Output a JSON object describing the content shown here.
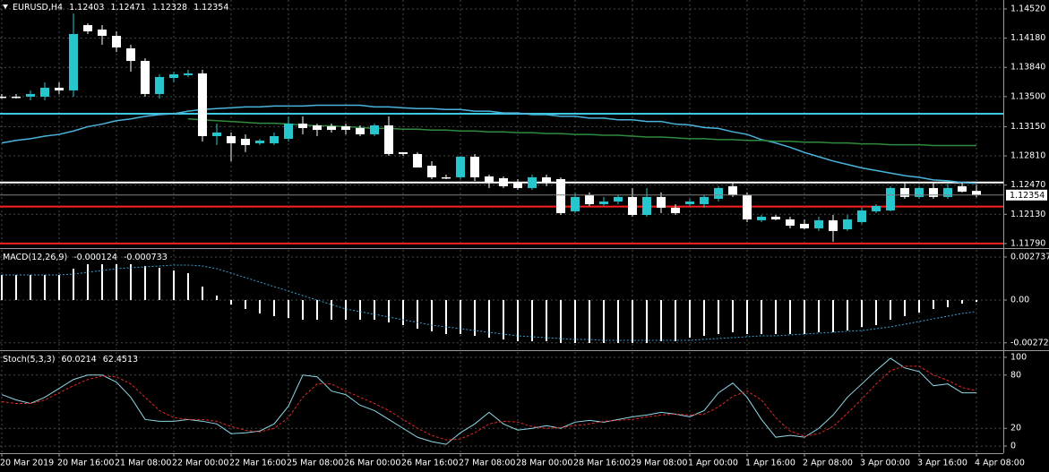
{
  "chart_data": [
    {
      "type": "candlestick",
      "title": "EURUSD,H4",
      "categories": [
        "20 Mar 2019",
        null,
        null,
        null,
        "20 Mar 16:00",
        null,
        null,
        null,
        "21 Mar 08:00",
        null,
        null,
        null,
        "22 Mar 00:00",
        null,
        null,
        null,
        "22 Mar 16:00",
        null,
        null,
        null,
        "25 Mar 08:00",
        null,
        null,
        null,
        "26 Mar 00:00",
        null,
        null,
        null,
        "26 Mar 16:00",
        null,
        null,
        null,
        "27 Mar 08:00",
        null,
        null,
        null,
        "28 Mar 00:00",
        null,
        null,
        null,
        "28 Mar 16:00",
        null,
        null,
        null,
        "29 Mar 08:00",
        null,
        null,
        null,
        "1 Apr 00:00",
        null,
        null,
        null,
        "1 Apr 16:00",
        null,
        null,
        null,
        "2 Apr 08:00",
        null,
        null,
        null,
        "3 Apr 00:00",
        null,
        null,
        null,
        "3 Apr 16:00",
        null,
        null,
        null,
        "4 Apr 08:00"
      ],
      "open": [
        1.13499,
        1.13499,
        1.13499,
        1.13499,
        1.13603,
        1.13572,
        1.14332,
        1.1428,
        1.14207,
        1.14061,
        1.13915,
        1.1353,
        1.13717,
        1.13749,
        1.1377,
        1.1304,
        1.1304,
        1.13009,
        1.12957,
        1.12957,
        1.13009,
        1.13186,
        1.13165,
        1.13155,
        1.13155,
        1.13134,
        1.13061,
        1.13165,
        1.12853,
        1.12832,
        1.12696,
        1.12561,
        1.12561,
        1.128,
        1.12571,
        1.1255,
        1.12498,
        1.12436,
        1.12561,
        1.1254,
        1.12165,
        1.12352,
        1.12248,
        1.12279,
        1.12332,
        1.12123,
        1.12332,
        1.12207,
        1.12248,
        1.12248,
        1.12311,
        1.12457,
        1.12352,
        1.12061,
        1.12102,
        1.12071,
        1.12019,
        1.11967,
        1.12061,
        1.11956,
        1.1204,
        1.12165,
        1.12175,
        1.12436,
        1.12332,
        1.12436,
        1.12332,
        1.12457,
        1.12403
      ],
      "high": [
        1.1353,
        1.1353,
        1.13572,
        1.13665,
        1.13665,
        1.14468,
        1.14353,
        1.14332,
        1.14259,
        1.14103,
        1.13947,
        1.13759,
        1.1379,
        1.13811,
        1.13811,
        1.13186,
        1.13082,
        1.13061,
        1.13009,
        1.13082,
        1.13269,
        1.13269,
        1.13186,
        1.13186,
        1.13186,
        1.13165,
        1.13186,
        1.13269,
        1.12853,
        1.12853,
        1.12748,
        1.12592,
        1.12811,
        1.12832,
        1.12592,
        1.12571,
        1.1254,
        1.12592,
        1.12592,
        1.12561,
        1.12384,
        1.12384,
        1.12332,
        1.12352,
        1.12436,
        1.12436,
        1.12384,
        1.12248,
        1.12311,
        1.12352,
        1.12457,
        1.12498,
        1.12384,
        1.12123,
        1.12123,
        1.12102,
        1.12071,
        1.12102,
        1.12123,
        1.12123,
        1.12207,
        1.12248,
        1.12457,
        1.12498,
        1.12457,
        1.12498,
        1.12498,
        1.12498,
        1.12471
      ],
      "low": [
        1.13478,
        1.13478,
        1.13457,
        1.13457,
        1.1353,
        1.13499,
        1.14228,
        1.14103,
        1.1402,
        1.1379,
        1.13499,
        1.13478,
        1.13665,
        1.13728,
        1.12978,
        1.12936,
        1.12748,
        1.12853,
        1.12936,
        1.12936,
        1.12978,
        1.13061,
        1.1304,
        1.13082,
        1.13061,
        1.1304,
        1.1304,
        1.12811,
        1.12811,
        1.12675,
        1.1254,
        1.1254,
        1.1254,
        1.12519,
        1.12436,
        1.12436,
        1.12415,
        1.12415,
        1.12457,
        1.12123,
        1.12144,
        1.12227,
        1.12227,
        1.12248,
        1.12102,
        1.12102,
        1.12144,
        1.12123,
        1.12227,
        1.12207,
        1.12279,
        1.12332,
        1.1204,
        1.1204,
        1.12061,
        1.11967,
        1.11956,
        1.11936,
        1.11811,
        1.11936,
        1.12019,
        1.12144,
        1.12165,
        1.12311,
        1.12311,
        1.12311,
        1.12311,
        1.12384,
        1.12328
      ],
      "close": [
        1.13499,
        1.13499,
        1.1353,
        1.13603,
        1.13572,
        1.14228,
        1.14259,
        1.14207,
        1.14072,
        1.13915,
        1.1353,
        1.13728,
        1.13759,
        1.1377,
        1.1304,
        1.13082,
        1.12957,
        1.12936,
        1.12988,
        1.1304,
        1.13186,
        1.13134,
        1.13113,
        1.13113,
        1.13113,
        1.13061,
        1.13165,
        1.12832,
        1.12832,
        1.12675,
        1.12561,
        1.12561,
        1.128,
        1.12561,
        1.12509,
        1.12457,
        1.12436,
        1.12561,
        1.12498,
        1.12144,
        1.12332,
        1.12248,
        1.12279,
        1.12332,
        1.12123,
        1.12332,
        1.12207,
        1.12144,
        1.12279,
        1.12332,
        1.12436,
        1.12352,
        1.12071,
        1.12102,
        1.12071,
        1.11998,
        1.11967,
        1.12061,
        1.11936,
        1.12071,
        1.12175,
        1.12227,
        1.12436,
        1.12332,
        1.12436,
        1.12332,
        1.12436,
        1.12394,
        1.12354
      ],
      "up_color": "#26c6cf",
      "down_color": "#ffffff",
      "series": [
        {
          "color": "#4ab4de",
          "values": [
            1.1296,
            1.1299,
            1.1301,
            1.1304,
            1.1306,
            1.131,
            1.1315,
            1.1318,
            1.1322,
            1.1324,
            1.1327,
            1.1329,
            1.133,
            1.1333,
            1.1335,
            1.1336,
            1.1337,
            1.1338,
            1.1338,
            1.1339,
            1.1339,
            1.1339,
            1.134,
            1.134,
            1.134,
            1.134,
            1.1338,
            1.1338,
            1.1337,
            1.1336,
            1.1336,
            1.1335,
            1.1335,
            1.1333,
            1.1333,
            1.1331,
            1.1331,
            1.1329,
            1.1329,
            1.1327,
            1.1327,
            1.1325,
            1.1325,
            1.1323,
            1.1323,
            1.1321,
            1.1321,
            1.1318,
            1.1317,
            1.1314,
            1.1313,
            1.1309,
            1.1306,
            1.13,
            1.1296,
            1.1291,
            1.1285,
            1.128,
            1.1275,
            1.1271,
            1.1267,
            1.1264,
            1.1261,
            1.1258,
            1.1256,
            1.1253,
            1.1252,
            1.125,
            1.1249
          ]
        },
        {
          "color": "#2e8b3e",
          "values": [
            null,
            null,
            null,
            null,
            null,
            null,
            null,
            null,
            null,
            null,
            null,
            null,
            null,
            1.1324,
            1.1323,
            1.1322,
            1.1321,
            1.132,
            1.1319,
            1.1319,
            1.1318,
            1.1317,
            1.1316,
            1.1316,
            1.1315,
            1.1314,
            1.1313,
            1.1313,
            1.1312,
            1.1312,
            1.1311,
            1.1311,
            1.131,
            1.131,
            1.1309,
            1.1309,
            1.1308,
            1.1308,
            1.1307,
            1.1307,
            1.1306,
            1.1306,
            1.1305,
            1.1305,
            1.1304,
            1.1303,
            1.1303,
            1.1302,
            1.1301,
            1.1301,
            1.13,
            1.13,
            1.1299,
            1.1299,
            1.1298,
            1.1298,
            1.1297,
            1.1297,
            1.1296,
            1.1296,
            1.1295,
            1.1295,
            1.1294,
            1.1294,
            1.1294,
            1.1293,
            1.1293,
            1.1293,
            1.1293
          ]
        }
      ],
      "hlines": [
        {
          "value": 1.133,
          "color": "#3cc8e0"
        },
        {
          "value": 1.125,
          "color": "#ffffff"
        },
        {
          "value": 1.1222,
          "color": "#ff2020"
        },
        {
          "value": 1.1179,
          "color": "#ff2020"
        }
      ],
      "bid_color": "#808080",
      "ylim": [
        1.11758,
        1.14624
      ],
      "yticks": [
        {
          "value": 1.1452,
          "label": "1.14520"
        },
        {
          "value": 1.1418,
          "label": "1.14180"
        },
        {
          "value": 1.1384,
          "label": "1.13840"
        },
        {
          "value": 1.135,
          "label": "1.13500"
        },
        {
          "value": 1.1315,
          "label": "1.13150"
        },
        {
          "value": 1.1281,
          "label": "1.12810"
        },
        {
          "value": 1.1247,
          "label": "1.12470"
        },
        {
          "value": 1.1213,
          "label": "1.12130"
        },
        {
          "value": 1.1179,
          "label": "1.11790"
        }
      ],
      "grid": true
    },
    {
      "type": "bar",
      "title": "MACD(12,26,9)",
      "series": [
        {
          "type": "bar",
          "color": "#ffffff",
          "values": [
            0.001596,
            0.001596,
            0.001596,
            0.001596,
            0.001596,
            0.001995,
            0.00228,
            0.00228,
            0.00228,
            0.00228,
            0.002166,
            0.002052,
            0.001881,
            0.00171,
            0.000855,
            0.000285,
            -0.000285,
            -0.00057,
            -0.000855,
            -0.001026,
            -0.00114,
            -0.001254,
            -0.001254,
            -0.001254,
            -0.001254,
            -0.001254,
            -0.001254,
            -0.001425,
            -0.001596,
            -0.001824,
            -0.001995,
            -0.002166,
            -0.002166,
            -0.00228,
            -0.002394,
            -0.002508,
            -0.002622,
            -0.002622,
            -0.002622,
            -0.002736,
            -0.002736,
            -0.002736,
            -0.002736,
            -0.002736,
            -0.002736,
            -0.002736,
            -0.002622,
            -0.002622,
            -0.002394,
            -0.00228,
            -0.002166,
            -0.002052,
            -0.002166,
            -0.002166,
            -0.002166,
            -0.002166,
            -0.002166,
            -0.002052,
            -0.002052,
            -0.001938,
            -0.00171,
            -0.001596,
            -0.001254,
            -0.001026,
            -0.000798,
            -0.00057,
            -0.000456,
            -0.000228,
            -0.000124
          ]
        },
        {
          "type": "line",
          "color": "#3a9fd0",
          "dash": true,
          "values": [
            0.001596,
            0.001596,
            0.001596,
            0.001596,
            0.001596,
            0.001653,
            0.001767,
            0.001881,
            0.001995,
            0.002052,
            0.002109,
            0.002166,
            0.002223,
            0.002223,
            0.002166,
            0.001995,
            0.00171,
            0.001425,
            0.00114,
            0.000855,
            0.00057,
            0.000285,
            0,
            -0.000285,
            -0.00057,
            -0.000741,
            -0.000912,
            -0.001083,
            -0.001254,
            -0.001425,
            -0.001596,
            -0.00171,
            -0.001824,
            -0.001938,
            -0.002052,
            -0.002166,
            -0.00228,
            -0.002337,
            -0.002394,
            -0.002451,
            -0.002508,
            -0.002508,
            -0.002565,
            -0.002565,
            -0.002565,
            -0.002565,
            -0.002565,
            -0.002565,
            -0.002565,
            -0.002508,
            -0.002451,
            -0.002394,
            -0.002337,
            -0.00228,
            -0.00228,
            -0.002223,
            -0.002166,
            -0.002109,
            -0.002052,
            -0.001995,
            -0.001938,
            -0.001824,
            -0.00171,
            -0.001539,
            -0.001368,
            -0.001197,
            -0.001026,
            -0.000855,
            -0.000733
          ]
        }
      ],
      "ylim": [
        -0.003135,
        0.00319
      ],
      "yticks": [
        0.002737,
        {
          "value": 0,
          "label": "0.00"
        },
        -0.002723
      ],
      "grid": true
    },
    {
      "type": "line",
      "title": "Stoch(5,3,3)",
      "series": [
        {
          "color": "#8fd8e8",
          "values": [
            58,
            52,
            48,
            55,
            65,
            75,
            80,
            80,
            72,
            55,
            30,
            28,
            28,
            30,
            28,
            25,
            14,
            15,
            17,
            25,
            45,
            80,
            78,
            62,
            58,
            46,
            40,
            30,
            20,
            10,
            5,
            2,
            15,
            25,
            38,
            25,
            18,
            20,
            23,
            20,
            27,
            29,
            27,
            30,
            33,
            35,
            38,
            36,
            33,
            40,
            60,
            71,
            55,
            30,
            10,
            12,
            10,
            20,
            35,
            55,
            70,
            85,
            99,
            88,
            84,
            68,
            70,
            60,
            60.0214
          ]
        },
        {
          "color": "#e02828",
          "dash": true,
          "values": [
            50,
            48,
            48,
            52,
            60,
            68,
            75,
            79,
            78,
            70,
            55,
            40,
            32,
            30,
            30,
            28,
            22,
            18,
            16,
            20,
            32,
            55,
            70,
            70,
            62,
            55,
            48,
            40,
            30,
            20,
            12,
            7,
            8,
            15,
            25,
            28,
            27,
            22,
            20,
            21,
            23,
            25,
            28,
            29,
            30,
            33,
            35,
            36,
            35,
            36,
            44,
            56,
            62,
            52,
            32,
            17,
            11,
            14,
            22,
            37,
            53,
            70,
            85,
            90,
            90,
            80,
            74,
            66,
            62.4513
          ]
        }
      ],
      "ylim": [
        -8,
        106
      ],
      "yticks": [
        100,
        80,
        20,
        0
      ],
      "grid": true
    }
  ]
}
